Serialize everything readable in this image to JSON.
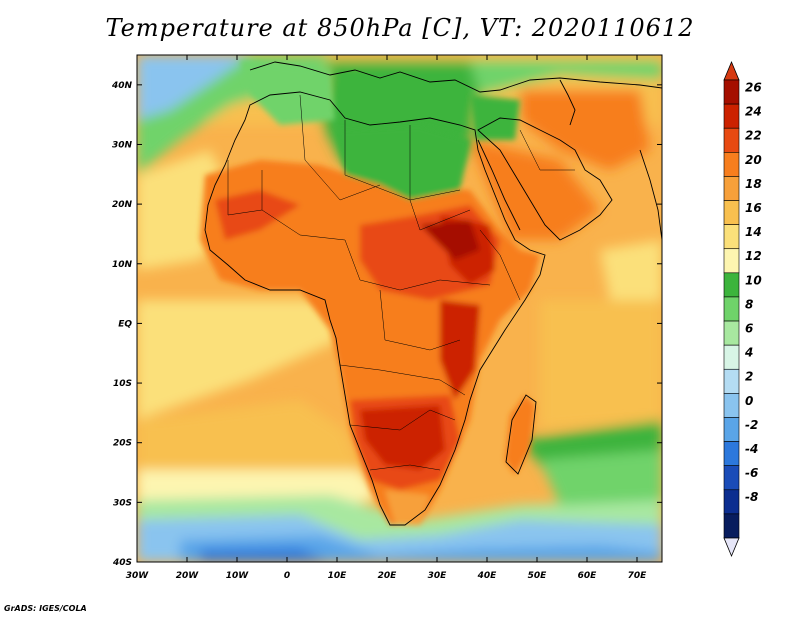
{
  "title": "Temperature at 850hPa [C], VT: 2020110612",
  "credit": "GrADS: IGES/COLA",
  "map": {
    "lon_range": [
      -30,
      75
    ],
    "lat_range": [
      -40,
      45
    ],
    "lon_ticks": [
      {
        "value": -30,
        "label": "30W"
      },
      {
        "value": -20,
        "label": "20W"
      },
      {
        "value": -10,
        "label": "10W"
      },
      {
        "value": 0,
        "label": "0"
      },
      {
        "value": 10,
        "label": "10E"
      },
      {
        "value": 20,
        "label": "20E"
      },
      {
        "value": 30,
        "label": "30E"
      },
      {
        "value": 40,
        "label": "40E"
      },
      {
        "value": 50,
        "label": "50E"
      },
      {
        "value": 60,
        "label": "60E"
      },
      {
        "value": 70,
        "label": "70E"
      }
    ],
    "lat_ticks": [
      {
        "value": 40,
        "label": "40N"
      },
      {
        "value": 30,
        "label": "30N"
      },
      {
        "value": 20,
        "label": "20N"
      },
      {
        "value": 10,
        "label": "10N"
      },
      {
        "value": 0,
        "label": "EQ"
      },
      {
        "value": -10,
        "label": "10S"
      },
      {
        "value": -20,
        "label": "20S"
      },
      {
        "value": -30,
        "label": "30S"
      },
      {
        "value": -40,
        "label": "40S"
      }
    ]
  },
  "colorbar": {
    "labels": [
      "26",
      "24",
      "22",
      "20",
      "18",
      "16",
      "14",
      "12",
      "10",
      "8",
      "6",
      "4",
      "2",
      "0",
      "-2",
      "-4",
      "-6",
      "-8"
    ],
    "colors": [
      "#a50f00",
      "#cc2200",
      "#e84a12",
      "#f77e1e",
      "#f7a03a",
      "#f8c04f",
      "#fbe07a",
      "#fdf5b0",
      "#3cb43c",
      "#6fd36a",
      "#a8e8a0",
      "#d8f5e6",
      "#b4dcf3",
      "#8ac4ef",
      "#5aa5e8",
      "#2c78dc",
      "#1a4cb8",
      "#0c2e90",
      "#081d5e"
    ],
    "top_color": "#d63a12",
    "bottom_color": "#e6e6f8"
  },
  "colors": {
    "ocean_warm": "#f9b24c",
    "ocean_mild": "#fbe07a",
    "ocean_cool": "#6fd36a",
    "ocean_cold": "#5aa5e8",
    "land_hot": "#cc2200",
    "land_warm": "#f77e1e"
  }
}
